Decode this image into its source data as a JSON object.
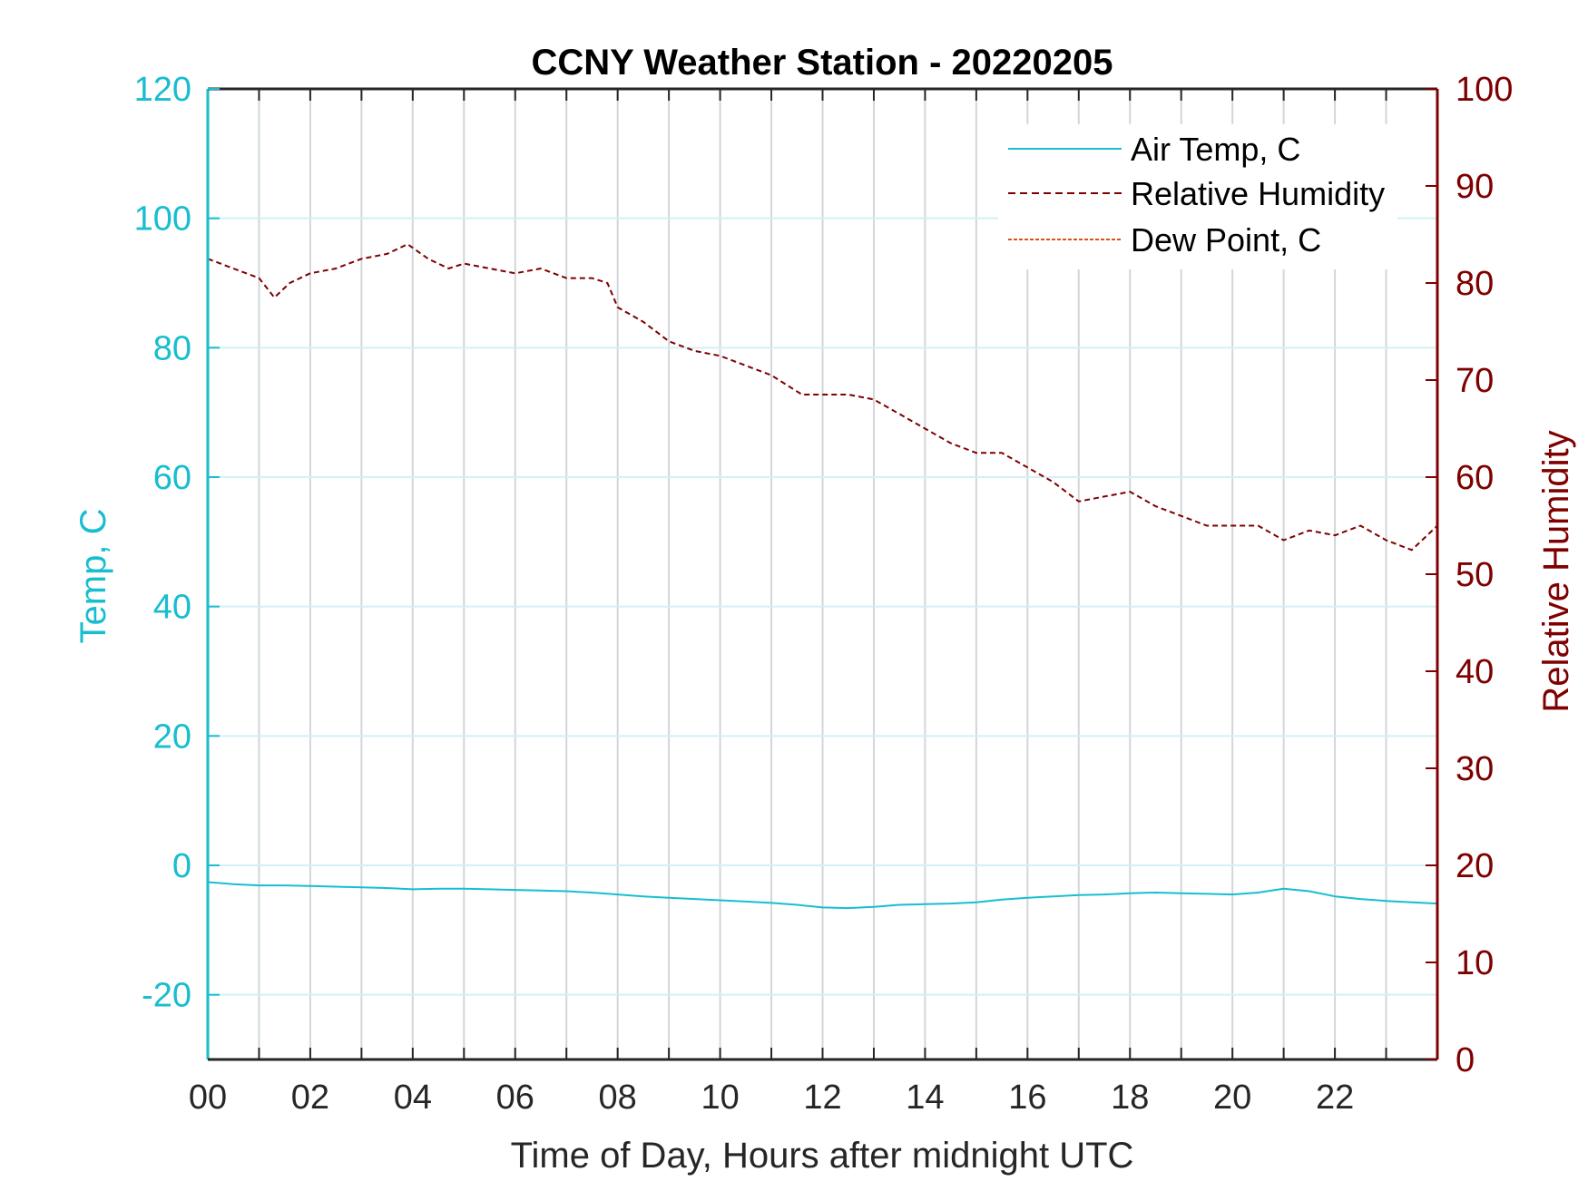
{
  "chart_data": {
    "type": "line",
    "title": "CCNY Weather Station - 20220205",
    "xlabel": "Time of Day, Hours after midnight UTC",
    "ylabel_left": "Temp, C",
    "ylabel_right": "Relative Humidity",
    "xlim": [
      0,
      24
    ],
    "ylim_left": [
      -30,
      120
    ],
    "ylim_right": [
      0,
      100
    ],
    "x_tick_values": [
      0,
      2,
      4,
      6,
      8,
      10,
      12,
      14,
      16,
      18,
      20,
      22
    ],
    "x_tick_labels": [
      "00",
      "02",
      "04",
      "06",
      "08",
      "10",
      "12",
      "14",
      "16",
      "18",
      "20",
      "22"
    ],
    "y_left_ticks": [
      -20,
      0,
      20,
      40,
      60,
      80,
      100,
      120
    ],
    "y_right_ticks": [
      0,
      10,
      20,
      30,
      40,
      50,
      60,
      70,
      80,
      90,
      100
    ],
    "grid": "on",
    "legend_position": "top-right",
    "colors": {
      "temp": "#17becf",
      "humidity": "#7f0000",
      "dewpoint": "#d95319",
      "text": "#262626"
    },
    "series": [
      {
        "name": "Air Temp, C",
        "axis": "left",
        "style": "solid",
        "x": [
          0,
          0.5,
          1,
          1.5,
          2,
          2.5,
          3,
          3.5,
          4,
          4.5,
          5,
          5.5,
          6,
          6.5,
          7,
          7.5,
          8,
          8.5,
          9,
          9.5,
          10,
          10.5,
          11,
          11.5,
          12,
          12.5,
          13,
          13.5,
          14,
          14.5,
          15,
          15.5,
          16,
          16.5,
          17,
          17.5,
          18,
          18.5,
          19,
          19.5,
          20,
          20.5,
          21,
          21.5,
          22,
          22.5,
          23,
          23.5,
          24
        ],
        "values": [
          -2.6,
          -2.9,
          -3.1,
          -3.1,
          -3.2,
          -3.3,
          -3.4,
          -3.5,
          -3.7,
          -3.6,
          -3.6,
          -3.7,
          -3.8,
          -3.9,
          -4.0,
          -4.2,
          -4.5,
          -4.8,
          -5.0,
          -5.2,
          -5.4,
          -5.6,
          -5.8,
          -6.1,
          -6.5,
          -6.6,
          -6.4,
          -6.1,
          -6.0,
          -5.9,
          -5.7,
          -5.3,
          -5.0,
          -4.8,
          -4.6,
          -4.5,
          -4.3,
          -4.2,
          -4.3,
          -4.4,
          -4.5,
          -4.2,
          -3.6,
          -4.0,
          -4.8,
          -5.2,
          -5.5,
          -5.7,
          -5.9
        ]
      },
      {
        "name": "Relative Humidity",
        "axis": "right",
        "style": "dashed",
        "x": [
          0,
          0.5,
          1,
          1.3,
          1.6,
          2,
          2.5,
          3,
          3.5,
          3.9,
          4.3,
          4.7,
          5,
          5.5,
          6,
          6.5,
          7,
          7.5,
          7.8,
          8,
          8.5,
          9,
          9.5,
          10,
          10.5,
          11,
          11.3,
          11.6,
          12,
          12.5,
          13,
          13.5,
          14,
          14.5,
          15,
          15.5,
          16,
          16.5,
          17,
          17.5,
          18,
          18.5,
          19,
          19.5,
          20,
          20.5,
          21,
          21.5,
          22,
          22.5,
          23,
          23.5,
          24
        ],
        "values": [
          82.5,
          81.5,
          80.5,
          78.5,
          80.0,
          81.0,
          81.5,
          82.5,
          83.0,
          84.0,
          82.5,
          81.5,
          82.0,
          81.5,
          81.0,
          81.5,
          80.5,
          80.5,
          80.0,
          77.5,
          76.0,
          74.0,
          73.0,
          72.5,
          71.5,
          70.5,
          69.5,
          68.5,
          68.5,
          68.5,
          68.0,
          66.5,
          65.0,
          63.5,
          62.5,
          62.5,
          61.0,
          59.5,
          57.5,
          58.0,
          58.5,
          57.0,
          56.0,
          55.0,
          55.0,
          55.0,
          53.5,
          54.5,
          54.0,
          55.0,
          53.5,
          52.5,
          55.0
        ]
      },
      {
        "name": "Dew Point, C",
        "axis": "left",
        "style": "dashed",
        "x": [],
        "values": []
      }
    ]
  }
}
